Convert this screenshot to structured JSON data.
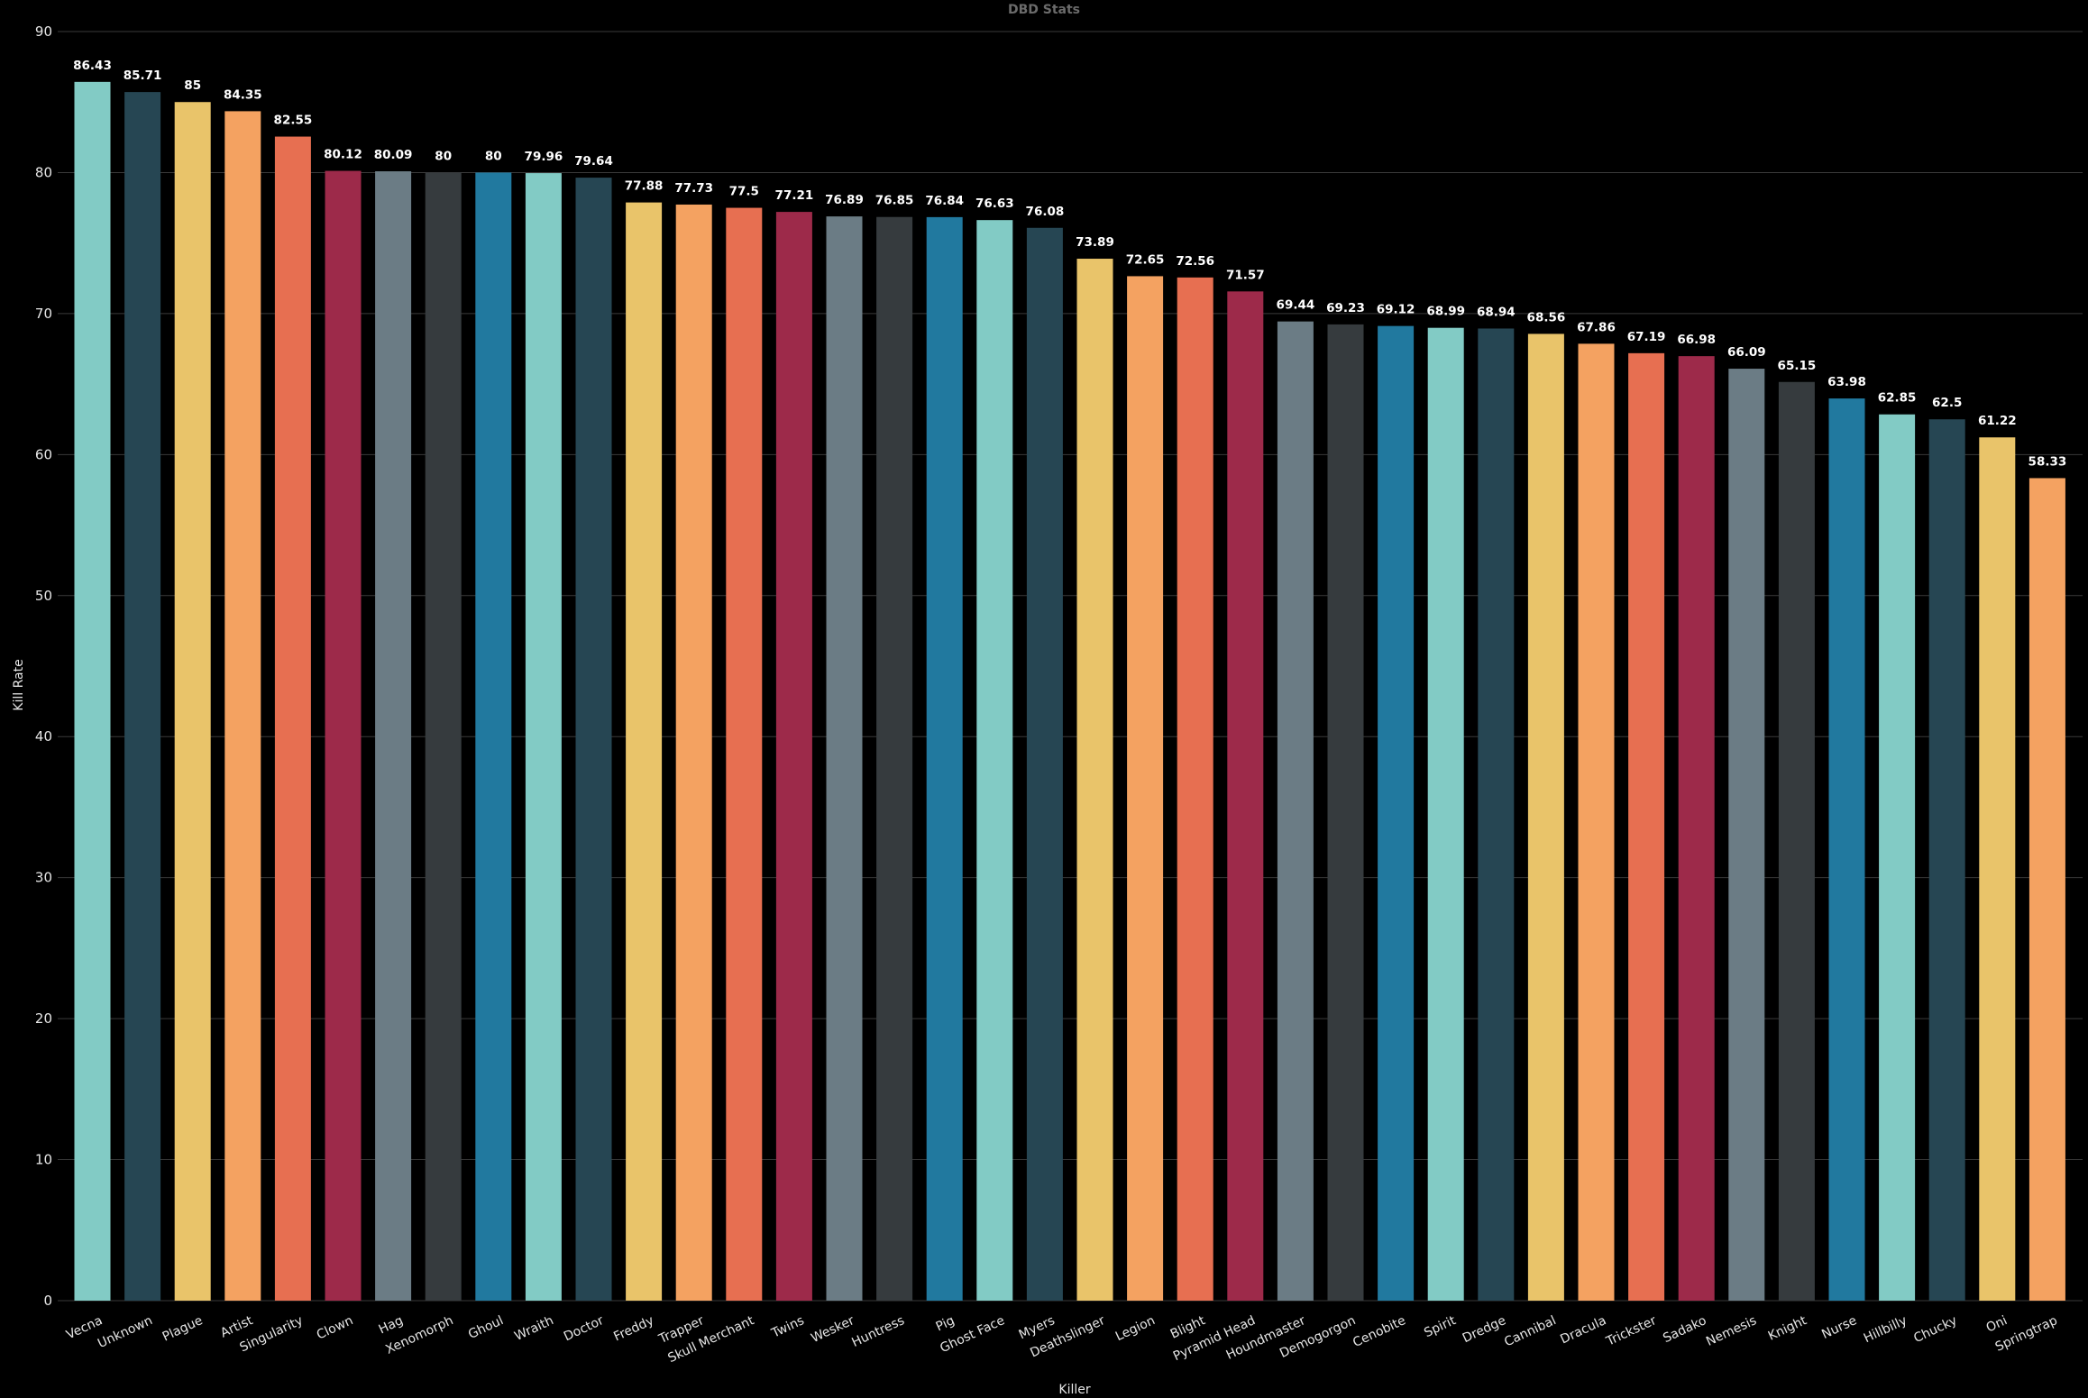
{
  "chart_data": {
    "type": "bar",
    "title": "DBD Stats",
    "xlabel": "Killer",
    "ylabel": "Kill Rate",
    "ylim": [
      0,
      90
    ],
    "yticks": [
      0,
      10,
      20,
      30,
      40,
      50,
      60,
      70,
      80,
      90
    ],
    "grid": true,
    "categories": [
      "Vecna",
      "Unknown",
      "Plague",
      "Artist",
      "Singularity",
      "Clown",
      "Hag",
      "Xenomorph",
      "Ghoul",
      "Wraith",
      "Doctor",
      "Freddy",
      "Trapper",
      "Skull Merchant",
      "Twins",
      "Wesker",
      "Huntress",
      "Pig",
      "Ghost Face",
      "Myers",
      "Deathslinger",
      "Legion",
      "Blight",
      "Pyramid Head",
      "Houndmaster",
      "Demogorgon",
      "Cenobite",
      "Spirit",
      "Dredge",
      "Cannibal",
      "Dracula",
      "Trickster",
      "Sadako",
      "Nemesis",
      "Knight",
      "Nurse",
      "Hillbilly",
      "Chucky",
      "Oni",
      "Springtrap"
    ],
    "values": [
      86.43,
      85.71,
      85,
      84.35,
      82.55,
      80.12,
      80.09,
      80,
      80,
      79.96,
      79.64,
      77.88,
      77.73,
      77.5,
      77.21,
      76.89,
      76.85,
      76.84,
      76.63,
      76.08,
      73.89,
      72.65,
      72.56,
      71.57,
      69.44,
      69.23,
      69.12,
      68.99,
      68.94,
      68.56,
      67.86,
      67.19,
      66.98,
      66.09,
      65.15,
      63.98,
      62.85,
      62.5,
      61.22,
      58.33
    ],
    "labels": [
      "86.43",
      "85.71",
      "85",
      "84.35",
      "82.55",
      "80.12",
      "80.09",
      "80",
      "80",
      "79.96",
      "79.64",
      "77.88",
      "77.73",
      "77.5",
      "77.21",
      "76.89",
      "76.85",
      "76.84",
      "76.63",
      "76.08",
      "73.89",
      "72.65",
      "72.56",
      "71.57",
      "69.44",
      "69.23",
      "69.12",
      "68.99",
      "68.94",
      "68.56",
      "67.86",
      "67.19",
      "66.98",
      "66.09",
      "65.15",
      "63.98",
      "62.85",
      "62.5",
      "61.22",
      "58.33"
    ],
    "palette": [
      "#82cbc5",
      "#264653",
      "#e9c46a",
      "#f4a261",
      "#e76f51",
      "#9d2a4a",
      "#6b7c85",
      "#363b3e",
      "#21799f"
    ]
  }
}
